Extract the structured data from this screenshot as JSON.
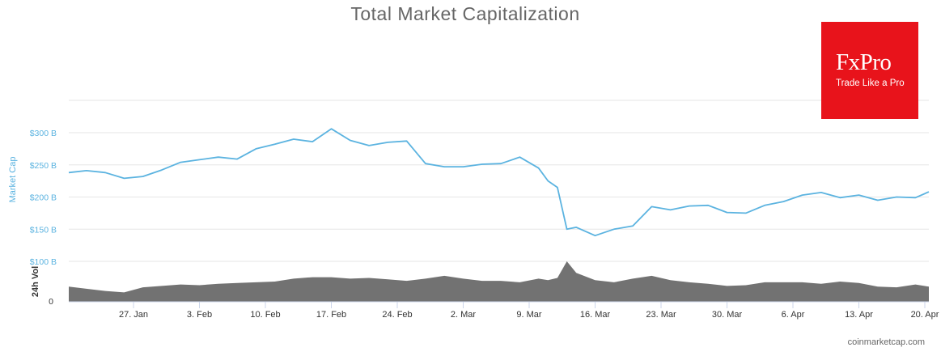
{
  "chart_data": {
    "type": "area",
    "title": "Total Market Capitalization",
    "ylabel": "Market Cap",
    "ylabel2": "24h Vol",
    "x_ticks": [
      "27. Jan",
      "3. Feb",
      "10. Feb",
      "17. Feb",
      "24. Feb",
      "2. Mar",
      "9. Mar",
      "16. Mar",
      "23. Mar",
      "30. Mar",
      "6. Apr",
      "13. Apr",
      "20. Apr"
    ],
    "y_ticks": [
      "$300 B",
      "$250 B",
      "$200 B",
      "$150 B",
      "$100 B"
    ],
    "ylim": [
      100,
      300
    ],
    "vol_tick": "0",
    "grid": true,
    "x": [
      "20. Jan",
      "22. Jan",
      "24. Jan",
      "26. Jan",
      "28. Jan",
      "30. Jan",
      "1. Feb",
      "3. Feb",
      "5. Feb",
      "7. Feb",
      "9. Feb",
      "11. Feb",
      "13. Feb",
      "15. Feb",
      "17. Feb",
      "19. Feb",
      "21. Feb",
      "23. Feb",
      "25. Feb",
      "27. Feb",
      "29. Feb",
      "2. Mar",
      "4. Mar",
      "6. Mar",
      "8. Mar",
      "10. Mar",
      "11. Mar",
      "12. Mar",
      "13. Mar",
      "14. Mar",
      "16. Mar",
      "18. Mar",
      "20. Mar",
      "22. Mar",
      "24. Mar",
      "26. Mar",
      "28. Mar",
      "30. Mar",
      "1. Apr",
      "3. Apr",
      "5. Apr",
      "7. Apr",
      "9. Apr",
      "11. Apr",
      "13. Apr",
      "15. Apr",
      "17. Apr",
      "19. Apr",
      "21. Apr"
    ],
    "series": [
      {
        "name": "Market Cap",
        "color": "#5bb3e0",
        "values": [
          238,
          241,
          238,
          229,
          232,
          242,
          254,
          258,
          262,
          259,
          275,
          282,
          290,
          286,
          306,
          288,
          280,
          285,
          287,
          252,
          247,
          247,
          251,
          252,
          262,
          245,
          225,
          215,
          150,
          153,
          140,
          150,
          155,
          185,
          180,
          186,
          187,
          176,
          175,
          187,
          193,
          203,
          207,
          199,
          203,
          195,
          200,
          199,
          208
        ]
      },
      {
        "name": "24h Vol",
        "color": "#727272",
        "values": [
          21,
          18,
          15,
          13,
          20,
          22,
          24,
          23,
          25,
          26,
          27,
          28,
          32,
          34,
          34,
          32,
          33,
          31,
          29,
          32,
          36,
          32,
          29,
          29,
          27,
          32,
          30,
          33,
          56,
          40,
          30,
          27,
          32,
          36,
          30,
          27,
          25,
          22,
          23,
          27,
          27,
          27,
          25,
          28,
          26,
          21,
          20,
          24,
          21
        ]
      }
    ]
  },
  "logo": {
    "name": "FxPro",
    "tagline": "Trade Like a Pro"
  },
  "credit": "coinmarketcap.com"
}
